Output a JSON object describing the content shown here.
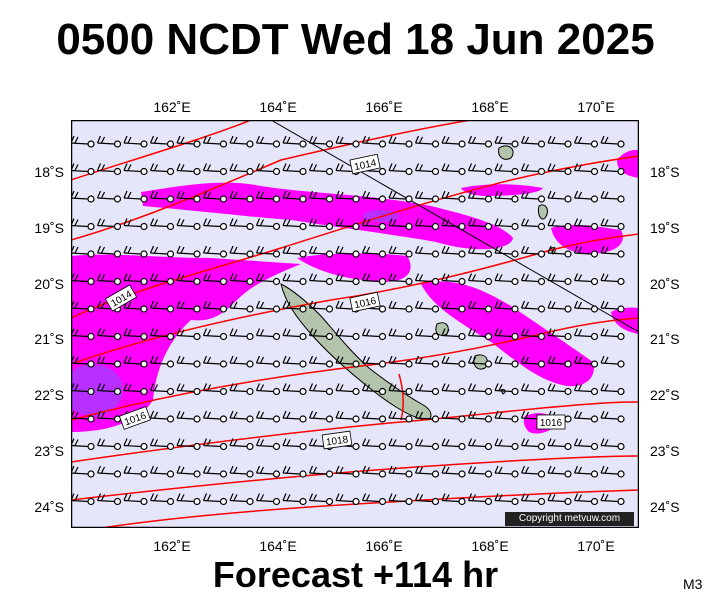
{
  "title": "0500 NCDT Wed 18 Jun 2025",
  "footer": "Forecast +114 hr",
  "model": "M3",
  "copyright": "Copyright metvuw.com",
  "map": {
    "lon_range": [
      160.2,
      171.0
    ],
    "lat_range": [
      -24.45,
      -17.2
    ],
    "lon_ticks": [
      "162˚E",
      "164˚E",
      "166˚E",
      "168˚E",
      "170˚E"
    ],
    "lat_ticks": [
      "18˚S",
      "19˚S",
      "20˚S",
      "21˚S",
      "22˚S",
      "23˚S",
      "24˚S"
    ],
    "isobar_labels": [
      "1014",
      "1014",
      "1016",
      "1016",
      "1016",
      "1018"
    ],
    "colors": {
      "background": "#e6e6fa",
      "precip_light": "#ff00ff",
      "precip_heavy": "#a040ff",
      "isobar": "#ff0000",
      "land": "#b4c4ac"
    },
    "islands": [
      "New Caledonia",
      "Loyalty Islands",
      "Vanuatu"
    ],
    "wind_barbs": "westerly barbs with open station circles on a regular grid"
  }
}
